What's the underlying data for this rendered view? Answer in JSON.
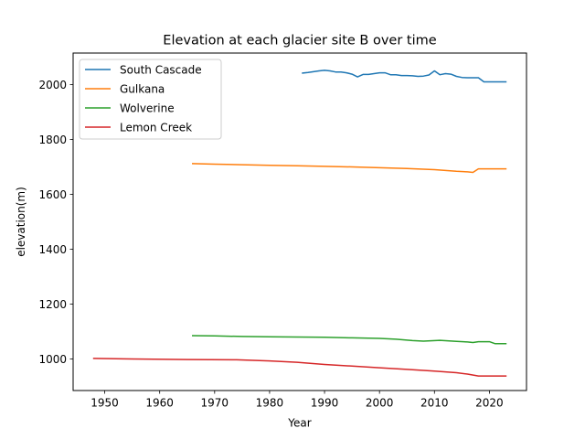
{
  "chart_data": {
    "type": "line",
    "title": "Elevation at each glacier site B over time",
    "xlabel": "Year",
    "ylabel": "elevation(m)",
    "xlim": [
      1944.25,
      2026.75
    ],
    "ylim": [
      885,
      2115
    ],
    "xticks": [
      1950,
      1960,
      1970,
      1980,
      1990,
      2000,
      2010,
      2020
    ],
    "yticks": [
      1000,
      1200,
      1400,
      1600,
      1800,
      2000
    ],
    "grid": false,
    "legend_position": "top-left",
    "series": [
      {
        "name": "South Cascade",
        "color": "#1f77b4",
        "x": [
          1986,
          1987,
          1988,
          1989,
          1990,
          1991,
          1992,
          1993,
          1994,
          1995,
          1996,
          1997,
          1998,
          1999,
          2000,
          2001,
          2002,
          2003,
          2004,
          2005,
          2006,
          2007,
          2008,
          2009,
          2010,
          2011,
          2012,
          2013,
          2014,
          2015,
          2016,
          2017,
          2018,
          2019,
          2020,
          2021,
          2022,
          2023
        ],
        "y": [
          2042,
          2044,
          2047,
          2050,
          2052,
          2050,
          2046,
          2046,
          2043,
          2038,
          2028,
          2037,
          2037,
          2040,
          2043,
          2043,
          2036,
          2036,
          2033,
          2033,
          2032,
          2030,
          2031,
          2035,
          2050,
          2036,
          2040,
          2038,
          2030,
          2026,
          2025,
          2025,
          2025,
          2010,
          2010,
          2010,
          2010,
          2010
        ]
      },
      {
        "name": "Gulkana",
        "color": "#ff7f0e",
        "x": [
          1966,
          1970,
          1975,
          1980,
          1985,
          1990,
          1995,
          2000,
          2005,
          2010,
          2014,
          2016,
          2017,
          2018,
          2019,
          2020,
          2023
        ],
        "y": [
          1712,
          1710,
          1708,
          1706,
          1704,
          1702,
          1700,
          1697,
          1694,
          1690,
          1684,
          1682,
          1680,
          1693,
          1693,
          1693,
          1693
        ]
      },
      {
        "name": "Wolverine",
        "color": "#2ca02c",
        "x": [
          1966,
          1970,
          1975,
          1980,
          1985,
          1990,
          1995,
          2000,
          2003,
          2006,
          2008,
          2011,
          2014,
          2016,
          2017,
          2018,
          2020,
          2021,
          2023
        ],
        "y": [
          1085,
          1084,
          1082,
          1081,
          1080,
          1079,
          1077,
          1075,
          1072,
          1067,
          1065,
          1068,
          1064,
          1062,
          1060,
          1063,
          1063,
          1056,
          1056
        ]
      },
      {
        "name": "Lemon Creek",
        "color": "#d62728",
        "x": [
          1948,
          1955,
          1965,
          1974,
          1980,
          1985,
          1990,
          1995,
          2000,
          2005,
          2010,
          2014,
          2016,
          2018,
          2019,
          2020,
          2023
        ],
        "y": [
          1002,
          1000,
          998,
          997,
          993,
          988,
          980,
          974,
          968,
          962,
          956,
          950,
          945,
          938,
          938,
          938,
          938
        ]
      }
    ]
  }
}
